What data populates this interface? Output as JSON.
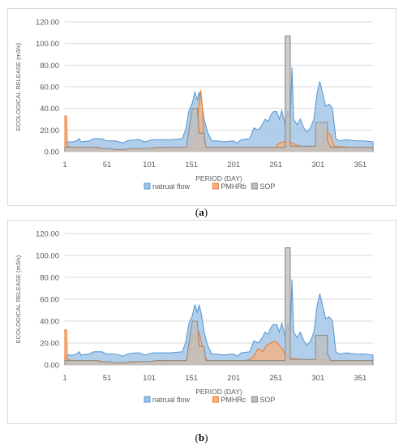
{
  "chart_data": [
    {
      "type": "area",
      "panel_label": "a",
      "xlabel": "PERIOD (DAY)",
      "ylabel": "ECOLOGICAL RELEASE (m3/s)",
      "ylim": [
        0,
        120
      ],
      "yticks": [
        "0.00",
        "20.00",
        "40.00",
        "60.00",
        "80.00",
        "100.00",
        "120.00"
      ],
      "xticks": [
        1,
        51,
        101,
        151,
        201,
        251,
        301,
        351
      ],
      "xlim": [
        1,
        366
      ],
      "grid": true,
      "legend_position": "bottom",
      "series": [
        {
          "name": "natrual flow",
          "kind": "area",
          "color": "#9dc3e6",
          "edge": "#5b9bd5",
          "points": [
            [
              1,
              8
            ],
            [
              5,
              9
            ],
            [
              10,
              9
            ],
            [
              15,
              10
            ],
            [
              18,
              12
            ],
            [
              20,
              9
            ],
            [
              30,
              10
            ],
            [
              35,
              12
            ],
            [
              45,
              12
            ],
            [
              50,
              10
            ],
            [
              60,
              10
            ],
            [
              70,
              8
            ],
            [
              75,
              10
            ],
            [
              85,
              11
            ],
            [
              90,
              11
            ],
            [
              95,
              9
            ],
            [
              105,
              11
            ],
            [
              115,
              11
            ],
            [
              125,
              11
            ],
            [
              140,
              12
            ],
            [
              144,
              20
            ],
            [
              148,
              38
            ],
            [
              152,
              45
            ],
            [
              155,
              55
            ],
            [
              158,
              48
            ],
            [
              160,
              55
            ],
            [
              163,
              45
            ],
            [
              166,
              30
            ],
            [
              170,
              18
            ],
            [
              175,
              10
            ],
            [
              180,
              10
            ],
            [
              190,
              9
            ],
            [
              200,
              10
            ],
            [
              205,
              8
            ],
            [
              210,
              11
            ],
            [
              220,
              12
            ],
            [
              225,
              22
            ],
            [
              230,
              20
            ],
            [
              235,
              25
            ],
            [
              238,
              30
            ],
            [
              242,
              28
            ],
            [
              245,
              34
            ],
            [
              248,
              37
            ],
            [
              252,
              37
            ],
            [
              255,
              30
            ],
            [
              258,
              38
            ],
            [
              262,
              25
            ],
            [
              265,
              38
            ],
            [
              268,
              30
            ],
            [
              270,
              78
            ],
            [
              272,
              30
            ],
            [
              276,
              25
            ],
            [
              280,
              30
            ],
            [
              284,
              22
            ],
            [
              288,
              18
            ],
            [
              292,
              22
            ],
            [
              296,
              30
            ],
            [
              300,
              55
            ],
            [
              303,
              65
            ],
            [
              306,
              55
            ],
            [
              310,
              42
            ],
            [
              314,
              44
            ],
            [
              318,
              40
            ],
            [
              322,
              12
            ],
            [
              326,
              10
            ],
            [
              335,
              11
            ],
            [
              345,
              10
            ],
            [
              355,
              10
            ],
            [
              366,
              9
            ]
          ]
        },
        {
          "name": "PMHRb",
          "kind": "area",
          "color": "#f4b183",
          "edge": "#ed7d31",
          "points": [
            [
              1,
              33
            ],
            [
              3,
              33
            ],
            [
              4,
              5
            ],
            [
              10,
              4
            ],
            [
              30,
              4
            ],
            [
              40,
              4
            ],
            [
              45,
              3
            ],
            [
              50,
              2
            ],
            [
              55,
              1
            ],
            [
              75,
              1
            ],
            [
              80,
              2
            ],
            [
              100,
              3
            ],
            [
              110,
              3
            ],
            [
              130,
              4
            ],
            [
              150,
              4
            ],
            [
              152,
              8
            ],
            [
              154,
              10
            ],
            [
              156,
              12
            ],
            [
              158,
              25
            ],
            [
              160,
              45
            ],
            [
              162,
              57
            ],
            [
              164,
              40
            ],
            [
              166,
              10
            ],
            [
              168,
              4
            ],
            [
              200,
              4
            ],
            [
              250,
              4
            ],
            [
              255,
              8
            ],
            [
              265,
              10
            ],
            [
              270,
              8
            ],
            [
              280,
              5
            ],
            [
              290,
              4
            ],
            [
              300,
              5
            ],
            [
              306,
              5
            ],
            [
              308,
              20
            ],
            [
              312,
              18
            ],
            [
              316,
              15
            ],
            [
              320,
              5
            ],
            [
              340,
              4
            ],
            [
              366,
              4
            ]
          ]
        },
        {
          "name": "SOP",
          "kind": "area",
          "color": "#bfbfbf",
          "edge": "#8c8c8c",
          "points": [
            [
              1,
              4
            ],
            [
              40,
              4
            ],
            [
              42,
              3
            ],
            [
              55,
              3
            ],
            [
              60,
              2
            ],
            [
              70,
              2
            ],
            [
              80,
              3
            ],
            [
              100,
              3
            ],
            [
              110,
              4
            ],
            [
              145,
              4
            ],
            [
              148,
              20
            ],
            [
              152,
              40
            ],
            [
              158,
              40
            ],
            [
              160,
              17
            ],
            [
              166,
              17
            ],
            [
              168,
              4
            ],
            [
              200,
              4
            ],
            [
              262,
              4
            ],
            [
              262,
              107
            ],
            [
              268,
              107
            ],
            [
              268,
              5
            ],
            [
              290,
              5
            ],
            [
              298,
              5
            ],
            [
              298,
              27
            ],
            [
              312,
              27
            ],
            [
              312,
              10
            ],
            [
              316,
              4
            ],
            [
              366,
              4
            ]
          ]
        }
      ]
    },
    {
      "type": "area",
      "panel_label": "b",
      "xlabel": "PERIOD (DAY)",
      "ylabel": "ECOLOGICAL RELEASE (m3/s)",
      "ylim": [
        0,
        120
      ],
      "yticks": [
        "0.00",
        "20.00",
        "40.00",
        "60.00",
        "80.00",
        "100.00",
        "120.00"
      ],
      "xticks": [
        1,
        51,
        101,
        151,
        201,
        251,
        301,
        351
      ],
      "xlim": [
        1,
        366
      ],
      "grid": true,
      "legend_position": "bottom",
      "series": [
        {
          "name": "natrual flow",
          "kind": "area",
          "color": "#9dc3e6",
          "edge": "#5b9bd5",
          "points": [
            [
              1,
              8
            ],
            [
              5,
              9
            ],
            [
              10,
              9
            ],
            [
              15,
              10
            ],
            [
              18,
              12
            ],
            [
              20,
              9
            ],
            [
              30,
              10
            ],
            [
              35,
              12
            ],
            [
              45,
              12
            ],
            [
              50,
              10
            ],
            [
              60,
              10
            ],
            [
              70,
              8
            ],
            [
              75,
              10
            ],
            [
              85,
              11
            ],
            [
              90,
              11
            ],
            [
              95,
              9
            ],
            [
              105,
              11
            ],
            [
              115,
              11
            ],
            [
              125,
              11
            ],
            [
              140,
              12
            ],
            [
              144,
              20
            ],
            [
              148,
              38
            ],
            [
              152,
              45
            ],
            [
              155,
              55
            ],
            [
              158,
              48
            ],
            [
              160,
              55
            ],
            [
              163,
              45
            ],
            [
              166,
              30
            ],
            [
              170,
              18
            ],
            [
              175,
              10
            ],
            [
              180,
              10
            ],
            [
              190,
              9
            ],
            [
              200,
              10
            ],
            [
              205,
              8
            ],
            [
              210,
              11
            ],
            [
              220,
              12
            ],
            [
              225,
              22
            ],
            [
              230,
              20
            ],
            [
              235,
              25
            ],
            [
              238,
              30
            ],
            [
              242,
              28
            ],
            [
              245,
              34
            ],
            [
              248,
              37
            ],
            [
              252,
              37
            ],
            [
              255,
              30
            ],
            [
              258,
              38
            ],
            [
              262,
              25
            ],
            [
              265,
              38
            ],
            [
              268,
              30
            ],
            [
              270,
              78
            ],
            [
              272,
              30
            ],
            [
              276,
              25
            ],
            [
              280,
              30
            ],
            [
              284,
              22
            ],
            [
              288,
              18
            ],
            [
              292,
              22
            ],
            [
              296,
              30
            ],
            [
              300,
              55
            ],
            [
              303,
              65
            ],
            [
              306,
              55
            ],
            [
              310,
              42
            ],
            [
              314,
              44
            ],
            [
              318,
              40
            ],
            [
              322,
              12
            ],
            [
              326,
              10
            ],
            [
              335,
              11
            ],
            [
              345,
              10
            ],
            [
              355,
              10
            ],
            [
              366,
              9
            ]
          ]
        },
        {
          "name": "PMHRc",
          "kind": "area",
          "color": "#f4b183",
          "edge": "#ed7d31",
          "points": [
            [
              1,
              32
            ],
            [
              3,
              32
            ],
            [
              4,
              5
            ],
            [
              10,
              4
            ],
            [
              40,
              4
            ],
            [
              45,
              3
            ],
            [
              50,
              2
            ],
            [
              55,
              1
            ],
            [
              75,
              1
            ],
            [
              80,
              2
            ],
            [
              100,
              3
            ],
            [
              110,
              3
            ],
            [
              130,
              4
            ],
            [
              146,
              4
            ],
            [
              149,
              12
            ],
            [
              152,
              25
            ],
            [
              155,
              30
            ],
            [
              158,
              25
            ],
            [
              160,
              30
            ],
            [
              163,
              20
            ],
            [
              166,
              8
            ],
            [
              170,
              4
            ],
            [
              215,
              4
            ],
            [
              220,
              5
            ],
            [
              225,
              8
            ],
            [
              230,
              15
            ],
            [
              235,
              12
            ],
            [
              240,
              18
            ],
            [
              245,
              20
            ],
            [
              250,
              22
            ],
            [
              255,
              18
            ],
            [
              258,
              15
            ],
            [
              262,
              10
            ],
            [
              266,
              8
            ],
            [
              270,
              6
            ],
            [
              280,
              5
            ],
            [
              300,
              5
            ],
            [
              308,
              5
            ],
            [
              312,
              4
            ],
            [
              366,
              4
            ]
          ]
        },
        {
          "name": "SOP",
          "kind": "area",
          "color": "#bfbfbf",
          "edge": "#8c8c8c",
          "points": [
            [
              1,
              4
            ],
            [
              40,
              4
            ],
            [
              42,
              3
            ],
            [
              55,
              3
            ],
            [
              60,
              2
            ],
            [
              70,
              2
            ],
            [
              80,
              3
            ],
            [
              100,
              3
            ],
            [
              110,
              4
            ],
            [
              145,
              4
            ],
            [
              148,
              20
            ],
            [
              152,
              40
            ],
            [
              158,
              40
            ],
            [
              160,
              17
            ],
            [
              166,
              17
            ],
            [
              168,
              4
            ],
            [
              200,
              4
            ],
            [
              262,
              4
            ],
            [
              262,
              107
            ],
            [
              268,
              107
            ],
            [
              268,
              5
            ],
            [
              290,
              5
            ],
            [
              298,
              5
            ],
            [
              298,
              27
            ],
            [
              312,
              27
            ],
            [
              312,
              10
            ],
            [
              316,
              4
            ],
            [
              366,
              4
            ]
          ]
        }
      ]
    }
  ],
  "captions": [
    {
      "open": "(",
      "label": "a",
      "close": ")"
    },
    {
      "open": "(",
      "label": "b",
      "close": ")"
    }
  ]
}
